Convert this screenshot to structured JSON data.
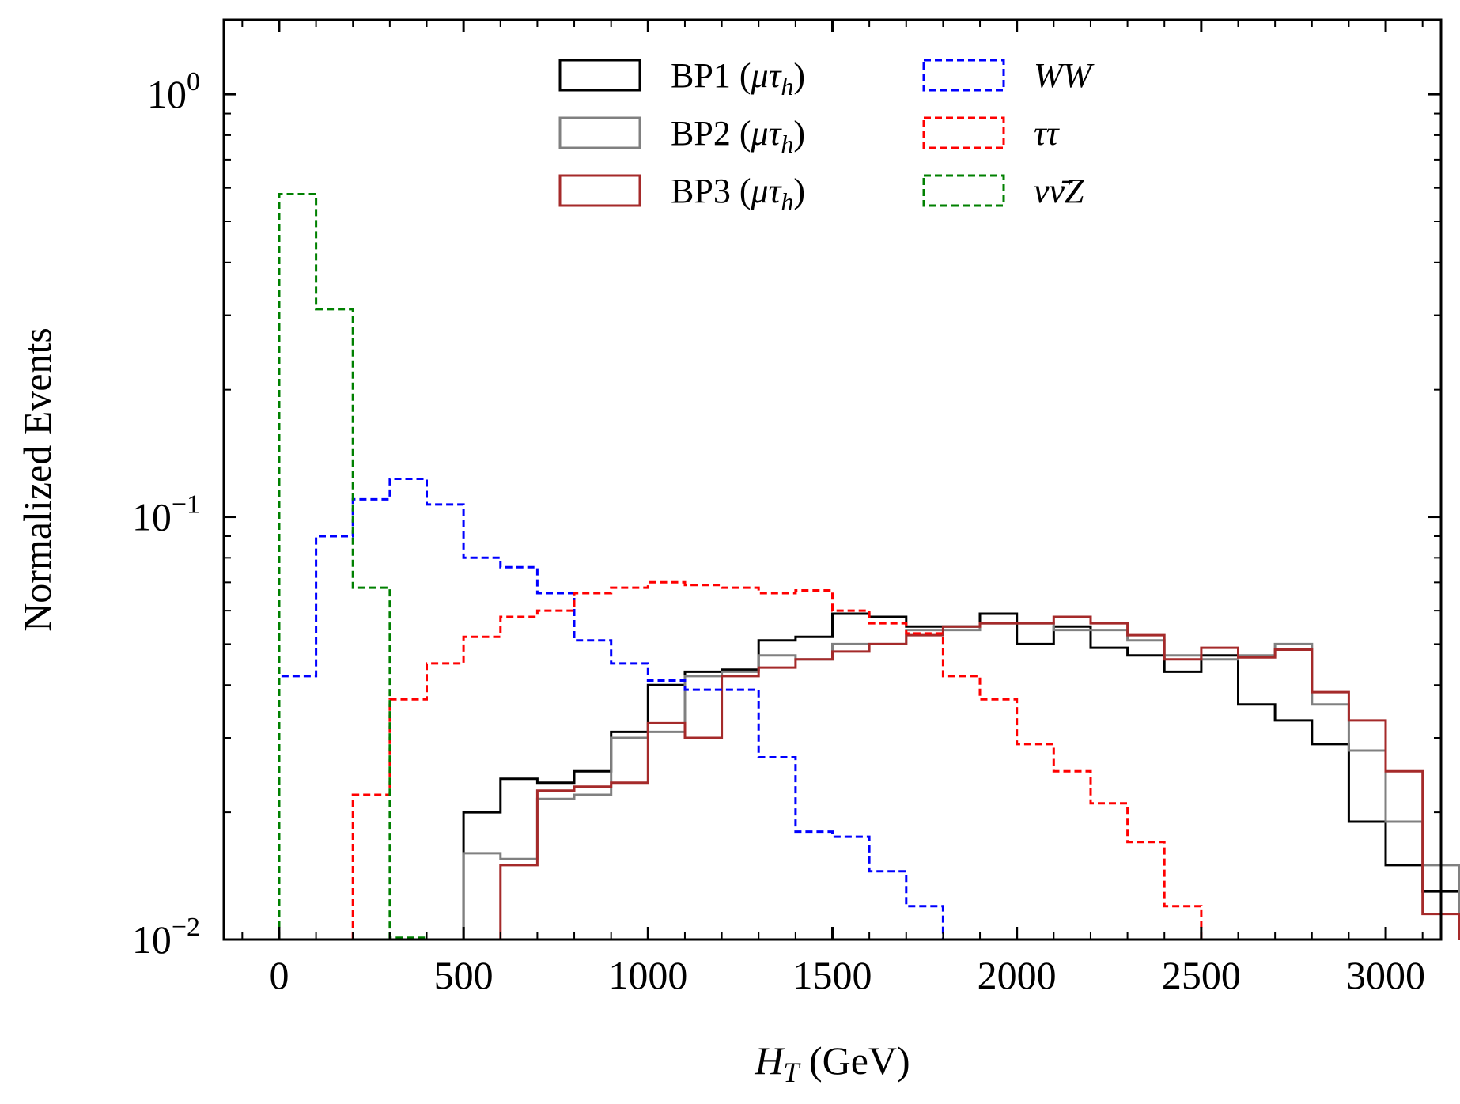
{
  "chart_data": {
    "type": "histogram-step",
    "xlabel": {
      "main": "H",
      "sub": "T",
      "unit": " (GeV)"
    },
    "ylabel": "Normalized Events",
    "xlim": [
      -150,
      3150
    ],
    "ylim": [
      0.01,
      1.5
    ],
    "yscale": "log",
    "grid": false,
    "legend_placement": "upper-center",
    "x_ticks": [
      0,
      500,
      1000,
      1500,
      2000,
      2500,
      3000
    ],
    "x_tick_labels": [
      "0",
      "500",
      "1000",
      "1500",
      "2000",
      "2500",
      "3000"
    ],
    "y_ticks": [
      {
        "value": 1,
        "base": "10",
        "exp": "0"
      },
      {
        "value": 0.1,
        "base": "10",
        "exp": "−1"
      },
      {
        "value": 0.01,
        "base": "10",
        "exp": "−2"
      }
    ],
    "bin_width": 100,
    "series": [
      {
        "name": "BP1 (μτh)",
        "color": "#000000",
        "style": "solid",
        "x_start": 500,
        "values": [
          0.02,
          0.024,
          0.0235,
          0.025,
          0.031,
          0.04,
          0.043,
          0.0435,
          0.051,
          0.052,
          0.059,
          0.058,
          0.055,
          0.055,
          0.059,
          0.05,
          0.055,
          0.049,
          0.047,
          0.043,
          0.047,
          0.036,
          0.033,
          0.029,
          0.019,
          0.015,
          0.013
        ]
      },
      {
        "name": "BP2 (μτh)",
        "color": "#808080",
        "style": "solid",
        "x_start": 500,
        "values": [
          0.016,
          0.0155,
          0.0215,
          0.022,
          0.03,
          0.031,
          0.042,
          0.043,
          0.047,
          0.046,
          0.05,
          0.05,
          0.054,
          0.054,
          0.056,
          0.056,
          0.054,
          0.054,
          0.051,
          0.047,
          0.046,
          0.047,
          0.05,
          0.036,
          0.028,
          0.019,
          0.015
        ]
      },
      {
        "name": "BP3 (μτh)",
        "color": "#a52a2a",
        "style": "solid",
        "x_start": 500,
        "values": [
          0.01,
          0.015,
          0.0225,
          0.023,
          0.0235,
          0.0325,
          0.03,
          0.042,
          0.044,
          0.046,
          0.048,
          0.05,
          0.0525,
          0.055,
          0.056,
          0.056,
          0.058,
          0.056,
          0.0525,
          0.046,
          0.049,
          0.0465,
          0.0485,
          0.0385,
          0.033,
          0.025,
          0.0115
        ]
      },
      {
        "name": "WW",
        "color": "#0000ff",
        "style": "dashed",
        "x_start": 0,
        "values": [
          0.042,
          0.09,
          0.11,
          0.123,
          0.107,
          0.08,
          0.076,
          0.066,
          0.051,
          0.045,
          0.041,
          0.039,
          0.039,
          0.027,
          0.018,
          0.0175,
          0.0145,
          0.012
        ]
      },
      {
        "name": "ττ",
        "color": "#ff0000",
        "style": "dashed",
        "x_start": 200,
        "values": [
          0.022,
          0.037,
          0.045,
          0.052,
          0.058,
          0.06,
          0.066,
          0.068,
          0.07,
          0.069,
          0.068,
          0.066,
          0.067,
          0.06,
          0.056,
          0.053,
          0.042,
          0.037,
          0.029,
          0.025,
          0.021,
          0.017,
          0.012
        ]
      },
      {
        "name": "νν̄Z",
        "color": "#008000",
        "style": "dashed",
        "x_start": 0,
        "values": [
          0.58,
          0.31,
          0.068,
          0.0101
        ]
      }
    ],
    "legend": {
      "col1": [
        {
          "base": "BP1 (",
          "greek": "μτ",
          "sub": "h",
          "close": ")",
          "color": "#000000",
          "dash": false
        },
        {
          "base": "BP2 (",
          "greek": "μτ",
          "sub": "h",
          "close": ")",
          "color": "#808080",
          "dash": false
        },
        {
          "base": "BP3 (",
          "greek": "μτ",
          "sub": "h",
          "close": ")",
          "color": "#a52a2a",
          "dash": false
        }
      ],
      "col2": [
        {
          "label": "WW",
          "color": "#0000ff",
          "dash": true
        },
        {
          "label": "ττ",
          "color": "#ff0000",
          "dash": true
        },
        {
          "label": "νν̄Z",
          "color": "#008000",
          "dash": true
        }
      ]
    }
  }
}
